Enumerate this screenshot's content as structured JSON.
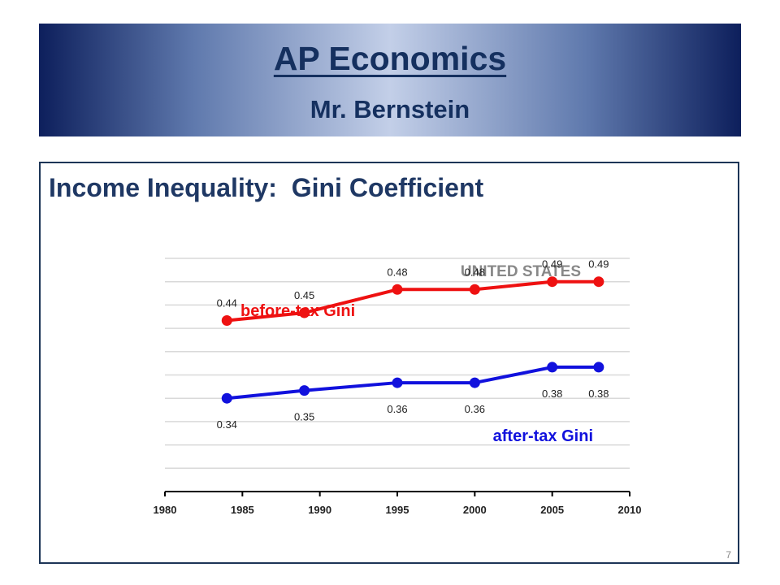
{
  "header": {
    "title": "AP Economics",
    "subtitle": "Mr. Bernstein"
  },
  "slide": {
    "heading": "Income Inequality:  Gini Coefficient",
    "number": "7"
  },
  "colors": {
    "before_tax": "#ee1111",
    "after_tax": "#1111dd",
    "heading": "#1f3864"
  },
  "chart_data": {
    "type": "line",
    "title": "UNITED STATES",
    "xlim": [
      1980,
      2010
    ],
    "x_ticks": [
      "1980",
      "1985",
      "1990",
      "1995",
      "2000",
      "2005",
      "2010"
    ],
    "ylim": [
      0.22,
      0.52
    ],
    "grid": true,
    "series": [
      {
        "name": "before-tax Gini",
        "color": "#ee1111",
        "x": [
          1984,
          1989,
          1995,
          2000,
          2005,
          2008
        ],
        "y": [
          0.44,
          0.45,
          0.48,
          0.48,
          0.49,
          0.49
        ],
        "labels": [
          "0.44",
          "0.45",
          "0.48",
          "0.48",
          "0.49",
          "0.49"
        ]
      },
      {
        "name": "after-tax Gini",
        "color": "#1111dd",
        "x": [
          1984,
          1989,
          1995,
          2000,
          2005,
          2008
        ],
        "y": [
          0.34,
          0.35,
          0.36,
          0.36,
          0.38,
          0.38
        ],
        "labels": [
          "0.34",
          "0.35",
          "0.36",
          "0.36",
          "0.38",
          "0.38"
        ]
      }
    ]
  }
}
